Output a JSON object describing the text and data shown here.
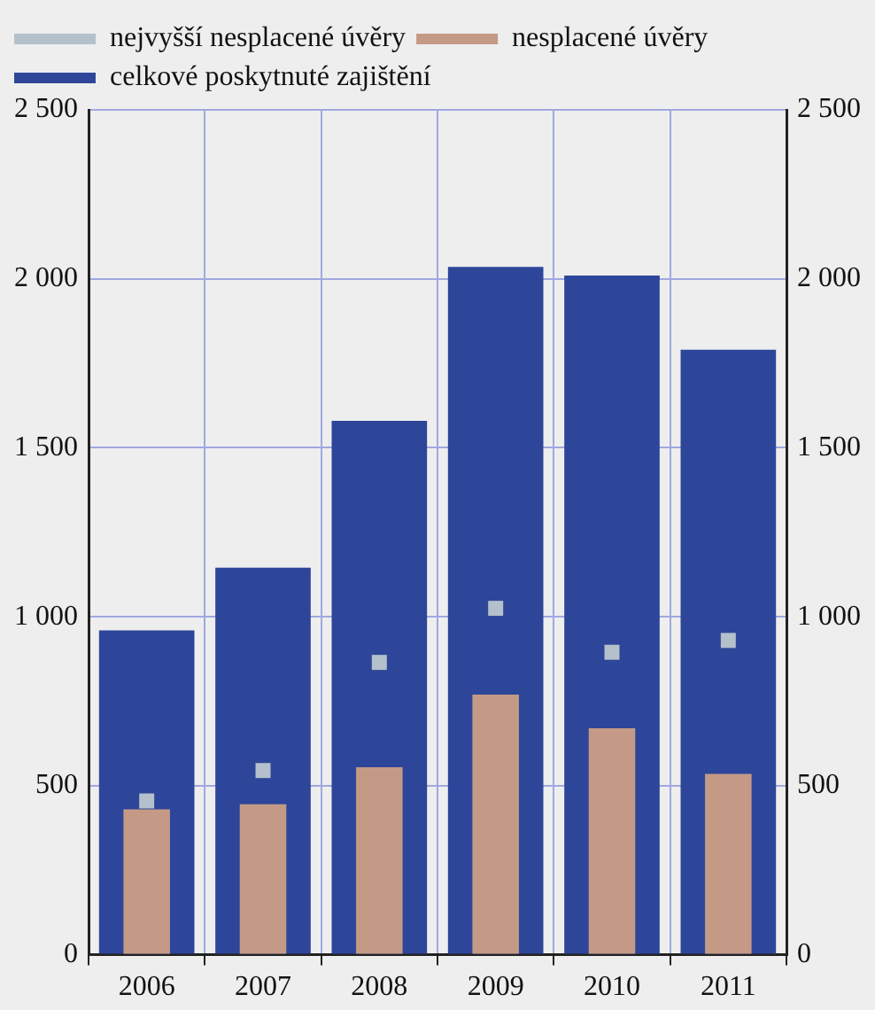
{
  "chart_data": {
    "type": "bar",
    "categories": [
      "2006",
      "2007",
      "2008",
      "2009",
      "2010",
      "2011"
    ],
    "series": [
      {
        "name": "celkové poskytnuté zajištění",
        "color": "#2e4699",
        "values": [
          960,
          1145,
          1580,
          2035,
          2010,
          1790
        ]
      },
      {
        "name": "nesplacené úvěry",
        "color": "#c49a86",
        "values": [
          430,
          445,
          555,
          770,
          670,
          535
        ]
      },
      {
        "name": "nejvyšší nesplacené úvěry",
        "type": "scatter",
        "color": "#b4c0cc",
        "values": [
          455,
          545,
          865,
          1025,
          895,
          930
        ],
        "marker": "square"
      }
    ],
    "ylim": [
      0,
      2500
    ],
    "yticks": [
      0,
      500,
      {
        "value": 1000,
        "label": "1 000"
      },
      {
        "value": 1500,
        "label": "1 500"
      },
      {
        "value": 2000,
        "label": "2 000"
      },
      {
        "value": 2500,
        "label": "2 500"
      }
    ],
    "y2lim": [
      0,
      2500
    ],
    "y2ticks": [
      0,
      500,
      {
        "value": 1000,
        "label": "1 000"
      },
      {
        "value": 1500,
        "label": "1 500"
      },
      {
        "value": 2000,
        "label": "2 000"
      },
      {
        "value": 2500,
        "label": "2 500"
      }
    ],
    "grid": true,
    "legend": "top left"
  }
}
